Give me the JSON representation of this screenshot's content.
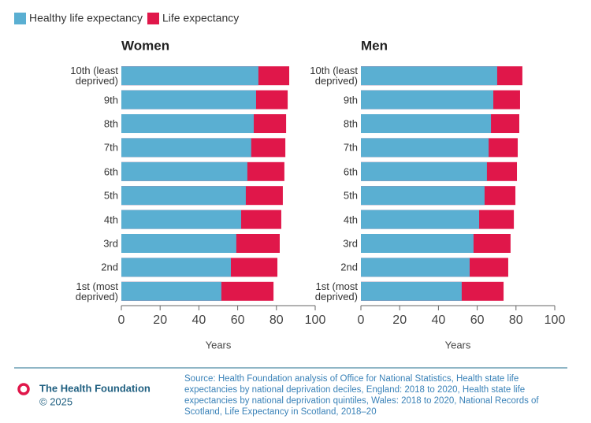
{
  "chart_data": [
    {
      "type": "bar",
      "title": "Women",
      "categories": [
        "10th (least\ndeprived)",
        "9th",
        "8th",
        "7th",
        "6th",
        "5th",
        "4th",
        "3rd",
        "2nd",
        "1st (most\ndeprived)"
      ],
      "series": [
        {
          "name": "Life expectancy",
          "color": "#e0174a",
          "values": [
            86.6,
            85.8,
            85,
            84.6,
            84.1,
            83.3,
            82.5,
            81.7,
            80.5,
            78.5
          ]
        },
        {
          "name": "Healthy life expectancy",
          "color": "#5aafd2",
          "values": [
            70.7,
            69.5,
            68.3,
            67,
            65,
            64.2,
            61.8,
            59.3,
            56.5,
            51.6
          ]
        }
      ],
      "xlim": [
        0,
        100
      ],
      "xticks": [
        0,
        20,
        40,
        60,
        80,
        100
      ],
      "xlabel": "Years",
      "grid": false
    },
    {
      "type": "bar",
      "title": "Men",
      "categories": [
        "10th (least\ndeprived)",
        "9th",
        "8th",
        "7th",
        "6th",
        "5th",
        "4th",
        "3rd",
        "2nd",
        "1st (most\ndeprived)"
      ],
      "series": [
        {
          "name": "Life expectancy",
          "color": "#e0174a",
          "values": [
            83.3,
            82.1,
            81.7,
            80.9,
            80.5,
            79.7,
            78.9,
            77.2,
            76,
            73.6
          ]
        },
        {
          "name": "Healthy life expectancy",
          "color": "#5aafd2",
          "values": [
            70.3,
            68.3,
            67.1,
            65.9,
            65,
            63.8,
            61,
            58.1,
            56.1,
            52
          ]
        }
      ],
      "xlim": [
        0,
        100
      ],
      "xticks": [
        0,
        20,
        40,
        60,
        80,
        100
      ],
      "xlabel": "Years",
      "grid": false
    }
  ],
  "footer": {
    "brand": "The Health Foundation",
    "copyright": "© 2025",
    "source": "Source: Health Foundation analysis of Office for National Statistics, Health state life expectancies by national deprivation deciles, England: 2018 to 2020, Health state life expectancies by national deprivation quintiles, Wales: 2018 to 2020, National Records of Scotland, Life Expectancy in Scotland, 2018–20"
  }
}
